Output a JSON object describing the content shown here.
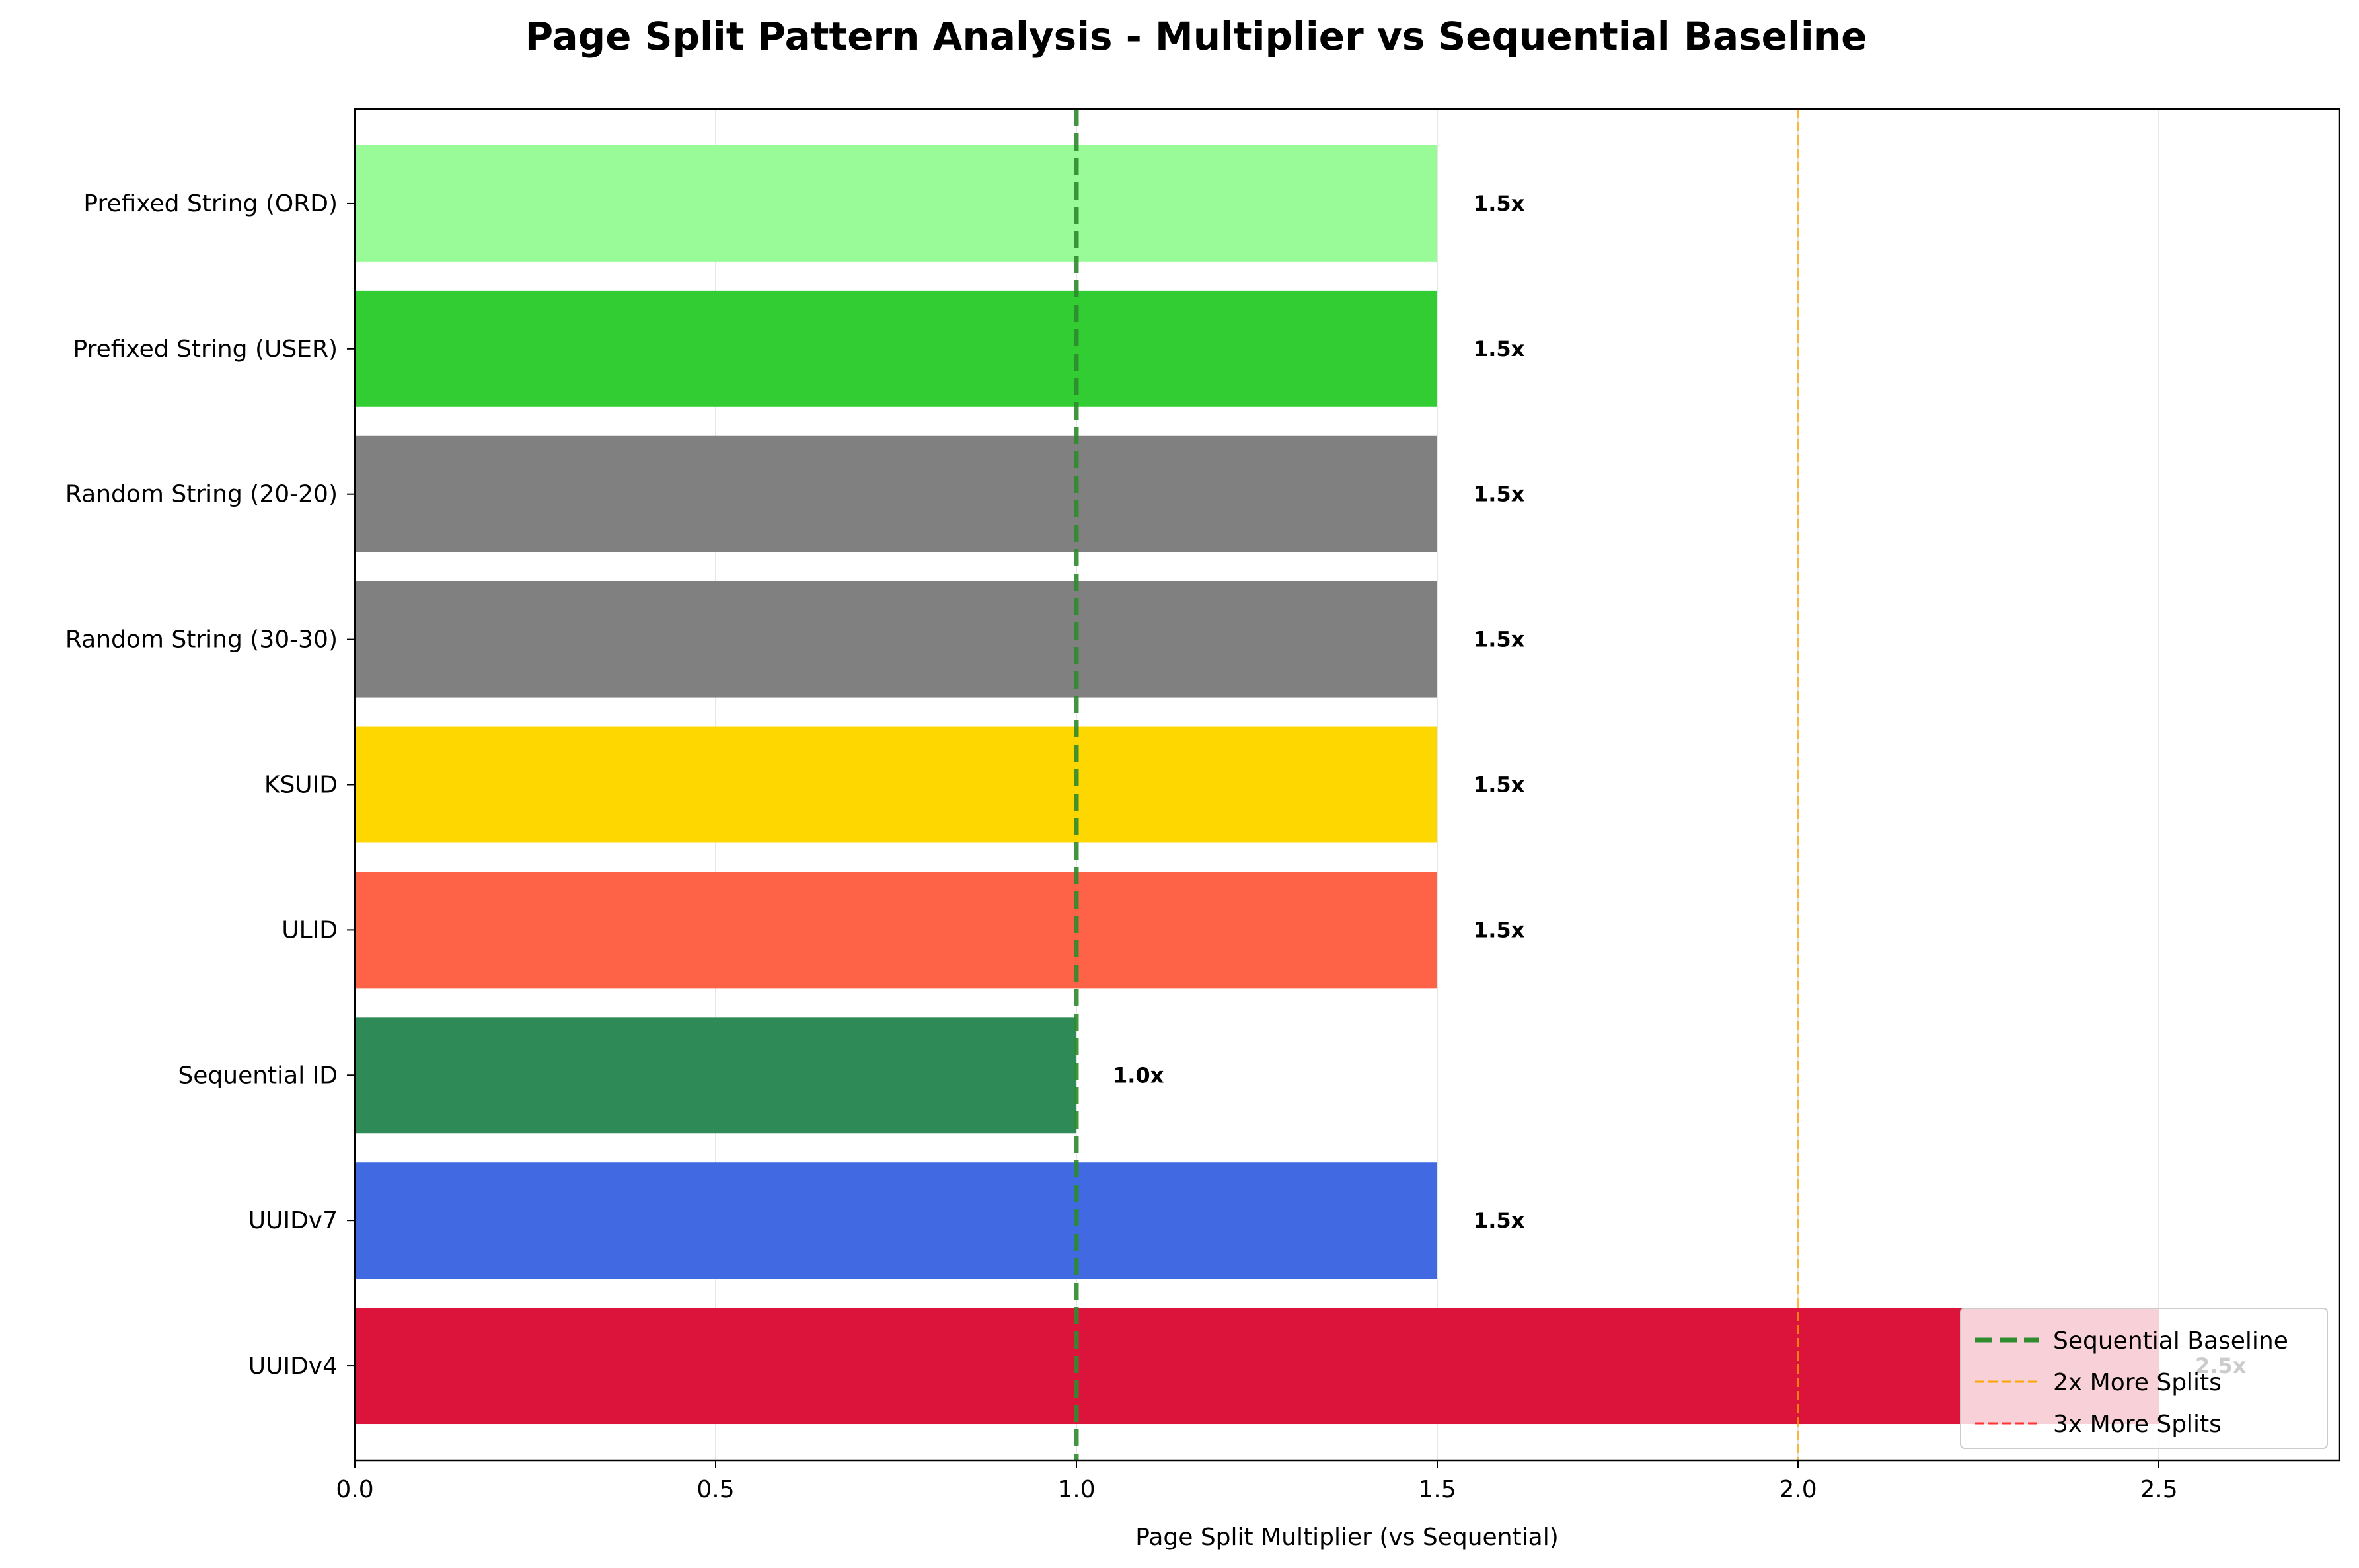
{
  "chart_data": {
    "type": "bar",
    "orientation": "horizontal",
    "title": "Page Split Pattern Analysis - Multiplier vs Sequential Baseline",
    "xlabel": "Page Split Multiplier (vs Sequential)",
    "ylabel": "",
    "xlim": [
      0,
      2.75
    ],
    "xticks": [
      "0.0",
      "0.5",
      "1.0",
      "1.5",
      "2.0",
      "2.5"
    ],
    "grid": "vertical",
    "categories": [
      "Prefixed String (ORD)",
      "Prefixed String (USER)",
      "Random String (20-20)",
      "Random String (30-30)",
      "KSUID",
      "ULID",
      "Sequential ID",
      "UUIDv7",
      "UUIDv4"
    ],
    "values": [
      1.5,
      1.5,
      1.5,
      1.5,
      1.5,
      1.5,
      1.0,
      1.5,
      2.5
    ],
    "data_labels": [
      "1.5x",
      "1.5x",
      "1.5x",
      "1.5x",
      "1.5x",
      "1.5x",
      "1.0x",
      "1.5x",
      "2.5x"
    ],
    "colors": [
      "#98fb98",
      "#32cd32",
      "#808080",
      "#808080",
      "#ffd700",
      "#ff6347",
      "#2e8b57",
      "#4169e1",
      "#dc143c"
    ],
    "reference_lines": [
      {
        "name": "Sequential Baseline",
        "x": 1.0,
        "color": "#2e8b2e",
        "style": "dashed-thick"
      },
      {
        "name": "2x More Splits",
        "x": 2.0,
        "color": "#ffa500",
        "style": "dashed"
      },
      {
        "name": "3x More Splits",
        "x": 3.0,
        "color": "#ff3333",
        "style": "dashed"
      }
    ],
    "legend": {
      "placement": "lower-right",
      "entries": [
        "Sequential Baseline",
        "2x More Splits",
        "3x More Splits"
      ]
    }
  }
}
